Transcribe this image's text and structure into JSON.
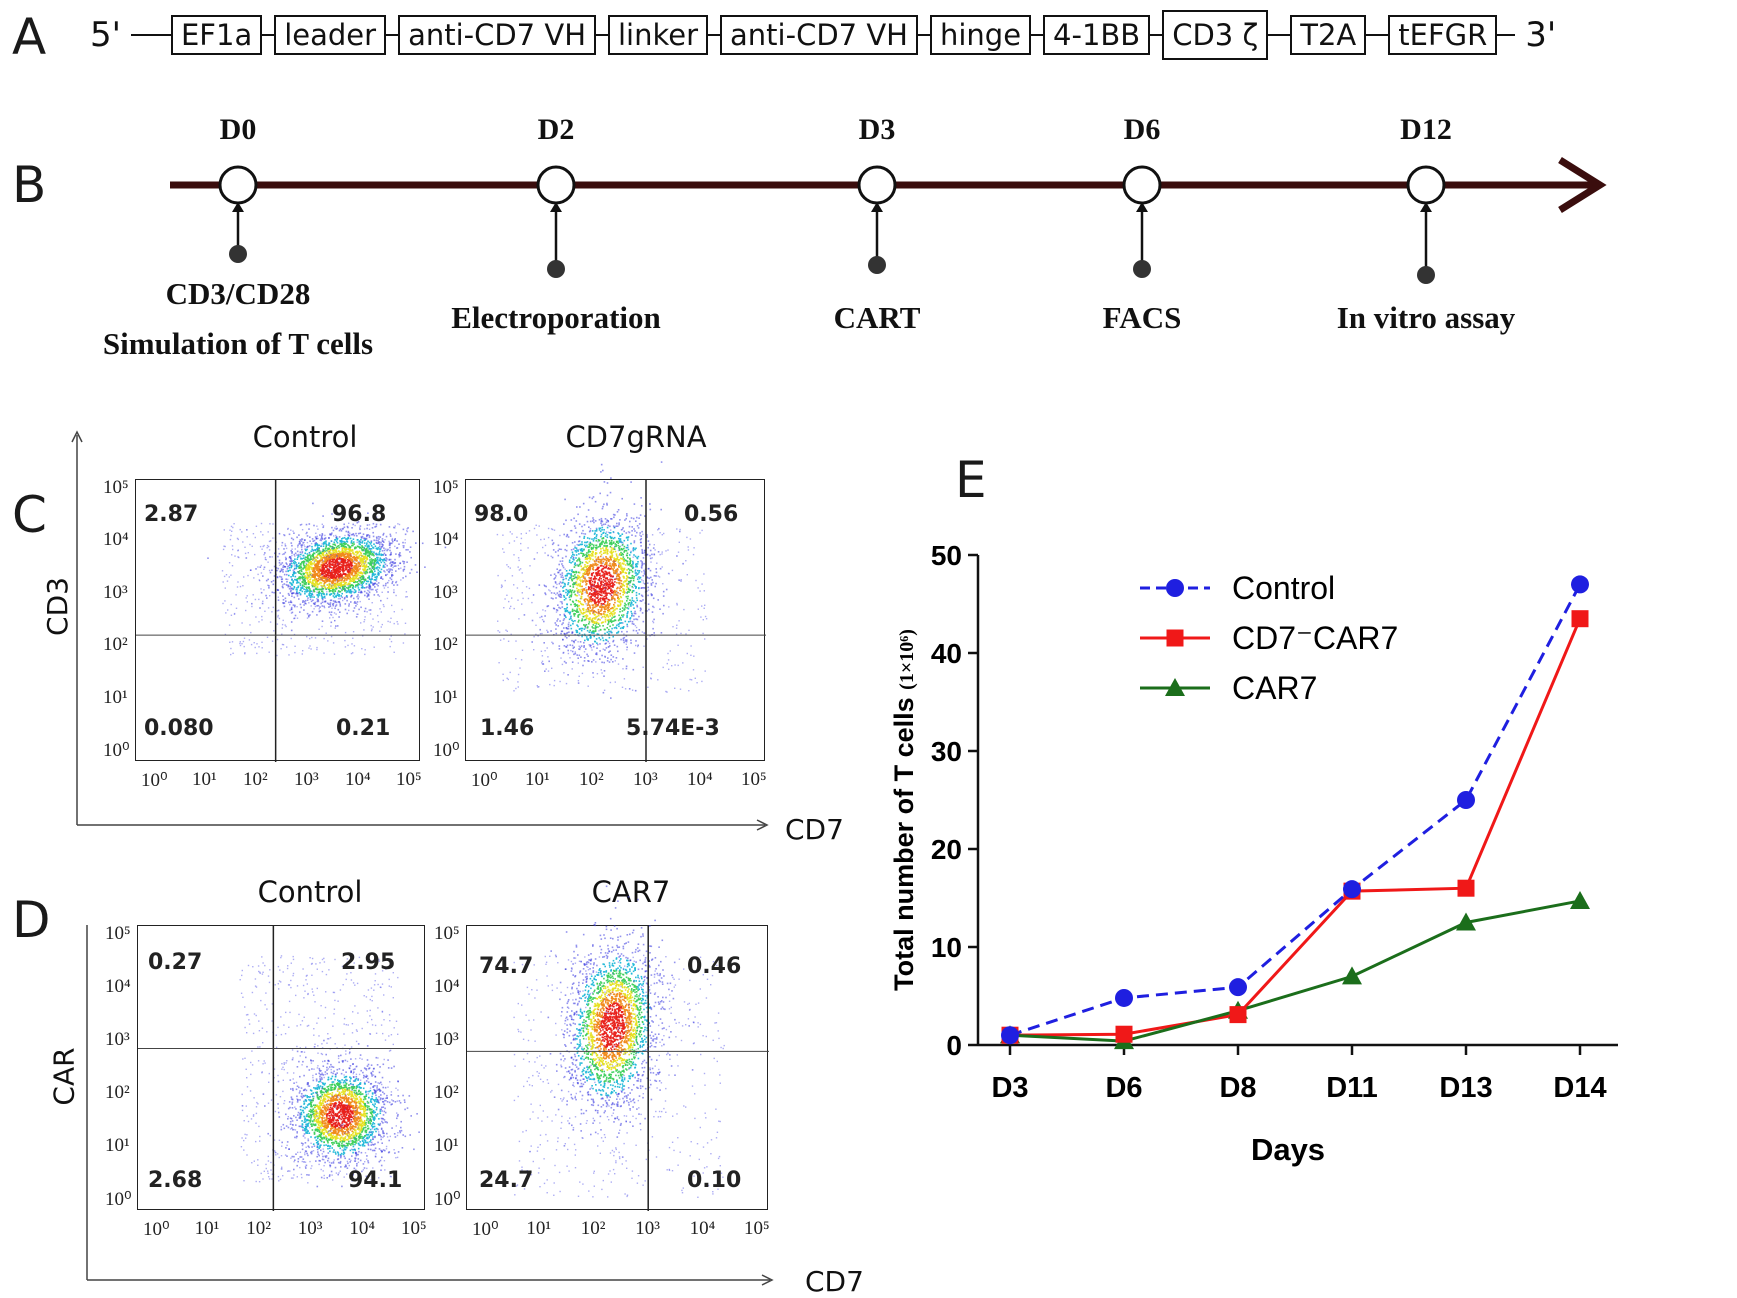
{
  "panelA": {
    "letter": "A",
    "five_prime": "5'",
    "three_prime": "3'",
    "elements": [
      "EF1a",
      "leader",
      "anti-CD7 VH",
      "linker",
      "anti-CD7 VH",
      "hinge",
      "4-1BB",
      "CD3 ζ",
      "T2A",
      "tEFGR"
    ]
  },
  "panelB": {
    "letter": "B",
    "days": [
      "D0",
      "D2",
      "D3",
      "D6",
      "D12"
    ],
    "events": [
      [
        "CD3/CD28",
        "Simulation of T cells"
      ],
      [
        "Electroporation"
      ],
      [
        "CART"
      ],
      [
        "FACS"
      ],
      [
        "In vitro assay"
      ]
    ]
  },
  "panelC": {
    "letter": "C",
    "y_axis": "CD3",
    "x_axis": "CD7",
    "plots": [
      {
        "title": "Control",
        "q_ul": "2.87",
        "q_ur": "96.8",
        "q_ll": "0.080",
        "q_lr": "0.21"
      },
      {
        "title": "CD7gRNA",
        "q_ul": "98.0",
        "q_ur": "0.56",
        "q_ll": "1.46",
        "q_lr": "5.74E-3"
      }
    ]
  },
  "panelD": {
    "letter": "D",
    "y_axis": "CAR",
    "x_axis": "CD7",
    "plots": [
      {
        "title": "Control",
        "q_ul": "0.27",
        "q_ur": "2.95",
        "q_ll": "2.68",
        "q_lr": "94.1"
      },
      {
        "title": "CAR7",
        "q_ul": "74.7",
        "q_ur": "0.46",
        "q_ll": "24.7",
        "q_lr": "0.10"
      }
    ]
  },
  "facs_ticks": {
    "y": [
      "10⁵",
      "10⁴",
      "10³",
      "10²",
      "10¹",
      "10⁰"
    ],
    "x": [
      "10⁰",
      "10¹",
      "10²",
      "10³",
      "10⁴",
      "10⁵"
    ]
  },
  "panelE": {
    "letter": "E",
    "chart_data": {
      "type": "line",
      "categories": [
        "D3",
        "D6",
        "D8",
        "D11",
        "D13",
        "D14"
      ],
      "series": [
        {
          "name": "Control",
          "values": [
            1.0,
            4.8,
            5.9,
            15.9,
            25.0,
            47.0
          ],
          "color": "#1f1fe0",
          "marker": "circle",
          "dashed": true
        },
        {
          "name": "CD7⁻CAR7",
          "values": [
            1.0,
            1.1,
            3.1,
            15.7,
            16.0,
            43.5
          ],
          "color": "#f01818",
          "marker": "square",
          "dashed": false
        },
        {
          "name": "CAR7",
          "values": [
            1.0,
            0.4,
            3.5,
            7.0,
            12.5,
            14.7
          ],
          "color": "#1b6e1b",
          "marker": "triangle",
          "dashed": false
        }
      ],
      "ylabel": "Total number of T cells",
      "ylabel_unit": "(1×10⁶)",
      "xlabel": "Days",
      "ylim": [
        0,
        50
      ],
      "yticks": [
        0,
        10,
        20,
        30,
        40,
        50
      ]
    }
  }
}
